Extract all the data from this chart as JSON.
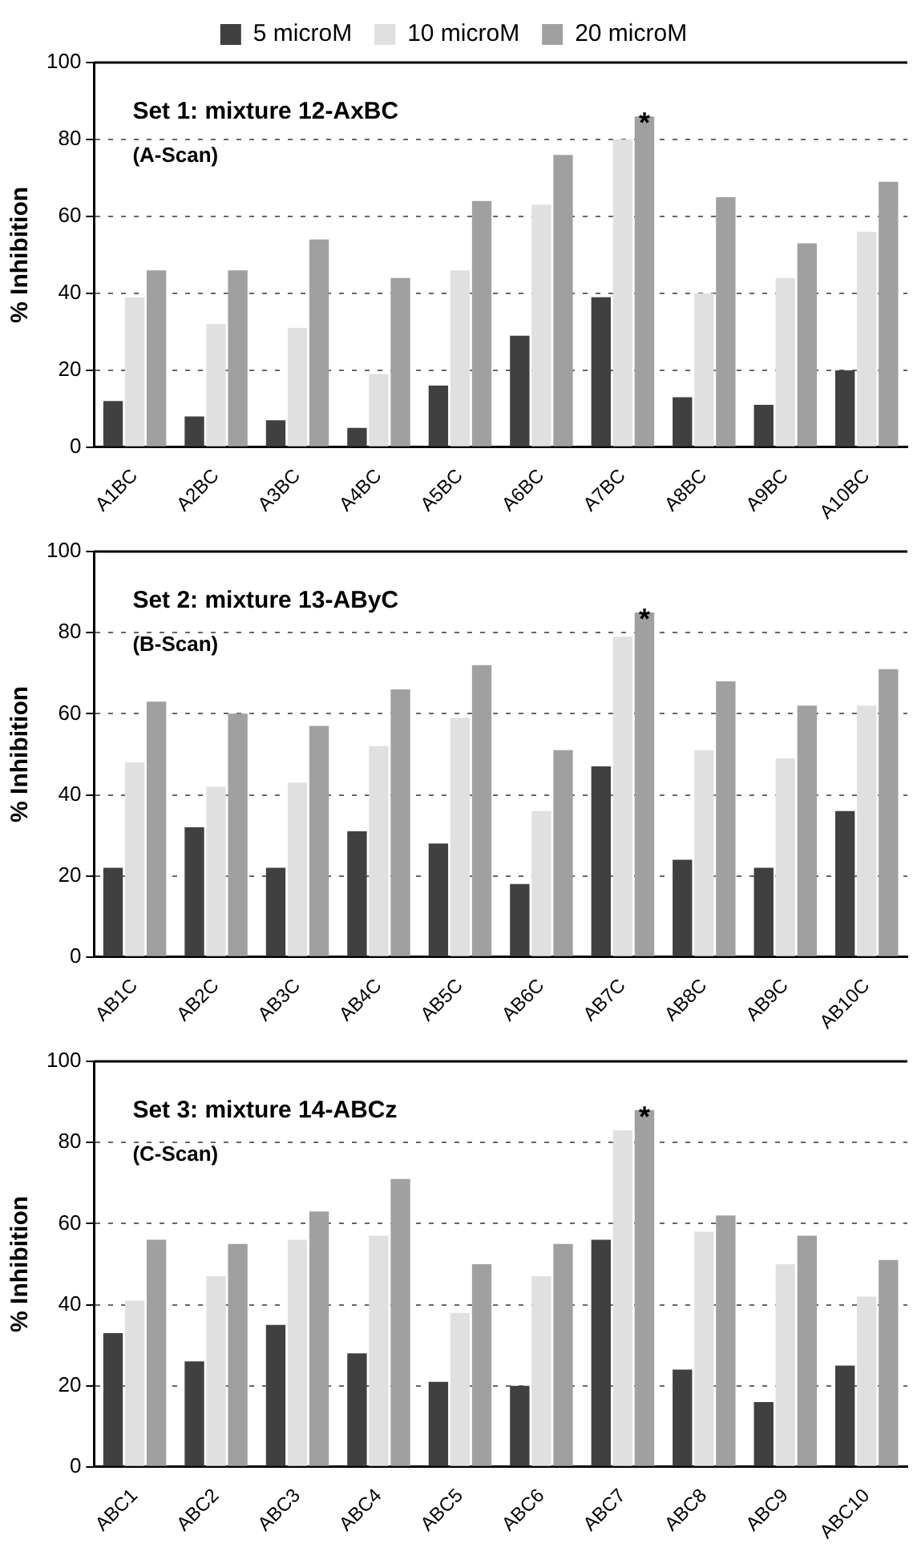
{
  "chart_data": [
    {
      "type": "bar",
      "title": "Set 1: mixture 12-AxBC",
      "subtitle": "(A-Scan)",
      "ylabel": "% Inhibition",
      "categories": [
        "A1BC",
        "A2BC",
        "A3BC",
        "A4BC",
        "A5BC",
        "A6BC",
        "A7BC",
        "A8BC",
        "A9BC",
        "A10BC"
      ],
      "series": [
        {
          "name": "5 microM",
          "color": "#404040",
          "values": [
            12,
            8,
            7,
            5,
            16,
            29,
            39,
            13,
            11,
            20
          ]
        },
        {
          "name": "10 microM",
          "color": "#e0e0e0",
          "values": [
            39,
            32,
            31,
            19,
            46,
            63,
            80,
            40,
            44,
            56
          ]
        },
        {
          "name": "20 microM",
          "color": "#a0a0a0",
          "values": [
            46,
            46,
            54,
            44,
            64,
            76,
            86,
            65,
            53,
            69
          ]
        }
      ],
      "annotations": [
        "*"
      ],
      "ylim": [
        0,
        100
      ],
      "yticks": [
        0,
        20,
        40,
        60,
        80,
        100
      ],
      "grid": "y",
      "legend": "top"
    },
    {
      "type": "bar",
      "title": "Set 2: mixture 13-AByC",
      "subtitle": "(B-Scan)",
      "ylabel": "% Inhibition",
      "categories": [
        "AB1C",
        "AB2C",
        "AB3C",
        "AB4C",
        "AB5C",
        "AB6C",
        "AB7C",
        "AB8C",
        "AB9C",
        "AB10C"
      ],
      "series": [
        {
          "color": "#404040",
          "values": [
            22,
            32,
            22,
            31,
            28,
            18,
            47,
            24,
            22,
            36
          ]
        },
        {
          "color": "#e0e0e0",
          "values": [
            48,
            42,
            43,
            52,
            59,
            36,
            79,
            51,
            49,
            62
          ]
        },
        {
          "color": "#a0a0a0",
          "values": [
            63,
            60,
            57,
            66,
            72,
            51,
            85,
            68,
            62,
            71
          ]
        }
      ],
      "annotations": [
        "*"
      ],
      "ylim": [
        0,
        100
      ],
      "yticks": [
        0,
        20,
        40,
        60,
        80,
        100
      ],
      "grid": "y"
    },
    {
      "type": "bar",
      "title": "Set 3: mixture 14-ABCz",
      "subtitle": "(C-Scan)",
      "ylabel": "% Inhibition",
      "categories": [
        "ABC1",
        "ABC2",
        "ABC3",
        "ABC4",
        "ABC5",
        "ABC6",
        "ABC7",
        "ABC8",
        "ABC9",
        "ABC10"
      ],
      "series": [
        {
          "color": "#404040",
          "values": [
            33,
            26,
            35,
            28,
            21,
            20,
            56,
            24,
            16,
            25
          ]
        },
        {
          "color": "#e0e0e0",
          "values": [
            41,
            47,
            56,
            57,
            38,
            47,
            83,
            58,
            50,
            42
          ]
        },
        {
          "color": "#a0a0a0",
          "values": [
            56,
            55,
            63,
            71,
            50,
            55,
            88,
            62,
            57,
            51
          ]
        }
      ],
      "annotations": [
        "*"
      ],
      "ylim": [
        0,
        100
      ],
      "yticks": [
        0,
        20,
        40,
        60,
        80,
        100
      ],
      "grid": "y"
    }
  ]
}
